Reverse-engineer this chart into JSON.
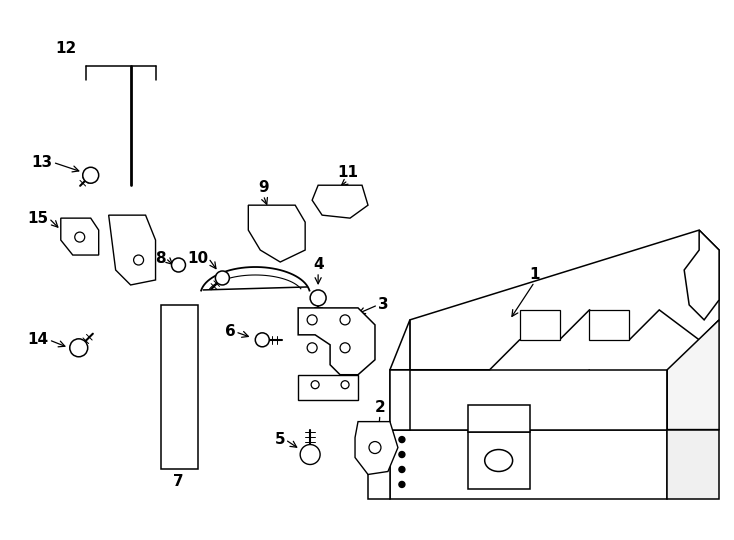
{
  "bg_color": "#ffffff",
  "line_color": "#000000",
  "label_fontsize": 11,
  "fig_width": 7.34,
  "fig_height": 5.4,
  "dpi": 100
}
